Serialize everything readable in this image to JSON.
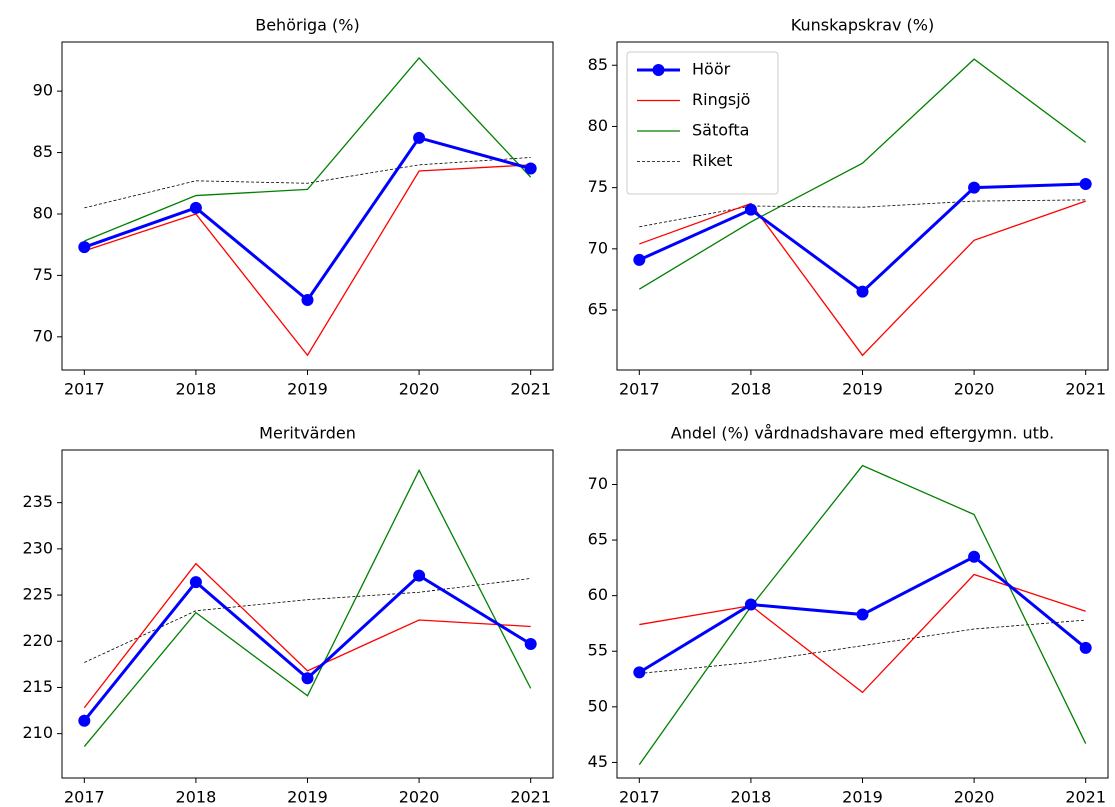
{
  "chart_data": [
    {
      "type": "line",
      "title": "Behöriga (%)",
      "x": [
        2017,
        2018,
        2019,
        2020,
        2021
      ],
      "xlim": [
        2016.8,
        2021.2
      ],
      "xticks": [
        2017,
        2018,
        2019,
        2020,
        2021
      ],
      "ylim": [
        67.3,
        94
      ],
      "yticks": [
        70,
        75,
        80,
        85,
        90
      ],
      "series": [
        {
          "color": "#0000ff",
          "linewidth": 3,
          "marker": "o",
          "values": [
            77.3,
            80.5,
            73.0,
            86.2,
            83.7
          ]
        },
        {
          "color": "#ff0000",
          "linewidth": 1.3,
          "values": [
            77.0,
            80.0,
            68.5,
            83.5,
            84.0
          ]
        },
        {
          "color": "#008000",
          "linewidth": 1.3,
          "values": [
            77.8,
            81.5,
            82.0,
            92.7,
            83.0
          ]
        },
        {
          "color": "#000000",
          "linewidth": 0.8,
          "linestyle": "dashed",
          "values": [
            80.5,
            82.7,
            82.5,
            84.0,
            84.6
          ]
        }
      ]
    },
    {
      "type": "line",
      "title": "Kunskapskrav (%)",
      "x": [
        2017,
        2018,
        2019,
        2020,
        2021
      ],
      "xlim": [
        2016.8,
        2021.2
      ],
      "xticks": [
        2017,
        2018,
        2019,
        2020,
        2021
      ],
      "ylim": [
        60.1,
        86.9
      ],
      "yticks": [
        65,
        70,
        75,
        80,
        85
      ],
      "legend": "upper left",
      "series": [
        {
          "name": "Höör",
          "color": "#0000ff",
          "linewidth": 3,
          "marker": "o",
          "values": [
            69.1,
            73.2,
            66.5,
            75.0,
            75.3
          ]
        },
        {
          "name": "Ringsjö",
          "color": "#ff0000",
          "linewidth": 1.3,
          "values": [
            70.4,
            73.7,
            61.3,
            70.7,
            73.9
          ]
        },
        {
          "name": "Sätofta",
          "color": "#008000",
          "linewidth": 1.3,
          "values": [
            66.7,
            72.2,
            77.0,
            85.5,
            78.7
          ]
        },
        {
          "name": "Riket",
          "color": "#000000",
          "linewidth": 0.8,
          "linestyle": "dashed",
          "values": [
            71.8,
            73.5,
            73.4,
            73.9,
            74.0
          ]
        }
      ]
    },
    {
      "type": "line",
      "title": "Meritvärden",
      "x": [
        2017,
        2018,
        2019,
        2020,
        2021
      ],
      "xlim": [
        2016.8,
        2021.2
      ],
      "xticks": [
        2017,
        2018,
        2019,
        2020,
        2021
      ],
      "ylim": [
        205.2,
        240.7
      ],
      "yticks": [
        210,
        215,
        220,
        225,
        230,
        235
      ],
      "series": [
        {
          "color": "#0000ff",
          "linewidth": 3,
          "marker": "o",
          "values": [
            211.4,
            226.4,
            216.0,
            227.1,
            219.7
          ]
        },
        {
          "color": "#ff0000",
          "linewidth": 1.3,
          "values": [
            212.8,
            228.4,
            216.8,
            222.3,
            221.6
          ]
        },
        {
          "color": "#008000",
          "linewidth": 1.3,
          "values": [
            208.6,
            223.1,
            214.1,
            238.5,
            214.9
          ]
        },
        {
          "color": "#000000",
          "linewidth": 0.8,
          "linestyle": "dashed",
          "values": [
            217.7,
            223.3,
            224.5,
            225.3,
            226.8
          ]
        }
      ]
    },
    {
      "type": "line",
      "title": "Andel (%) vårdnadshavare med eftergymn. utb.",
      "x": [
        2017,
        2018,
        2019,
        2020,
        2021
      ],
      "xlim": [
        2016.8,
        2021.2
      ],
      "xticks": [
        2017,
        2018,
        2019,
        2020,
        2021
      ],
      "ylim": [
        43.6,
        73.1
      ],
      "yticks": [
        45,
        50,
        55,
        60,
        65,
        70
      ],
      "series": [
        {
          "color": "#0000ff",
          "linewidth": 3,
          "marker": "o",
          "values": [
            53.1,
            59.2,
            58.3,
            63.5,
            55.3
          ]
        },
        {
          "color": "#ff0000",
          "linewidth": 1.3,
          "values": [
            57.4,
            59.1,
            51.3,
            61.9,
            58.6
          ]
        },
        {
          "color": "#008000",
          "linewidth": 1.3,
          "values": [
            44.8,
            59.0,
            71.7,
            67.3,
            46.7
          ]
        },
        {
          "color": "#000000",
          "linewidth": 0.8,
          "linestyle": "dashed",
          "values": [
            53.0,
            54.0,
            55.5,
            57.0,
            57.8
          ]
        }
      ]
    }
  ]
}
